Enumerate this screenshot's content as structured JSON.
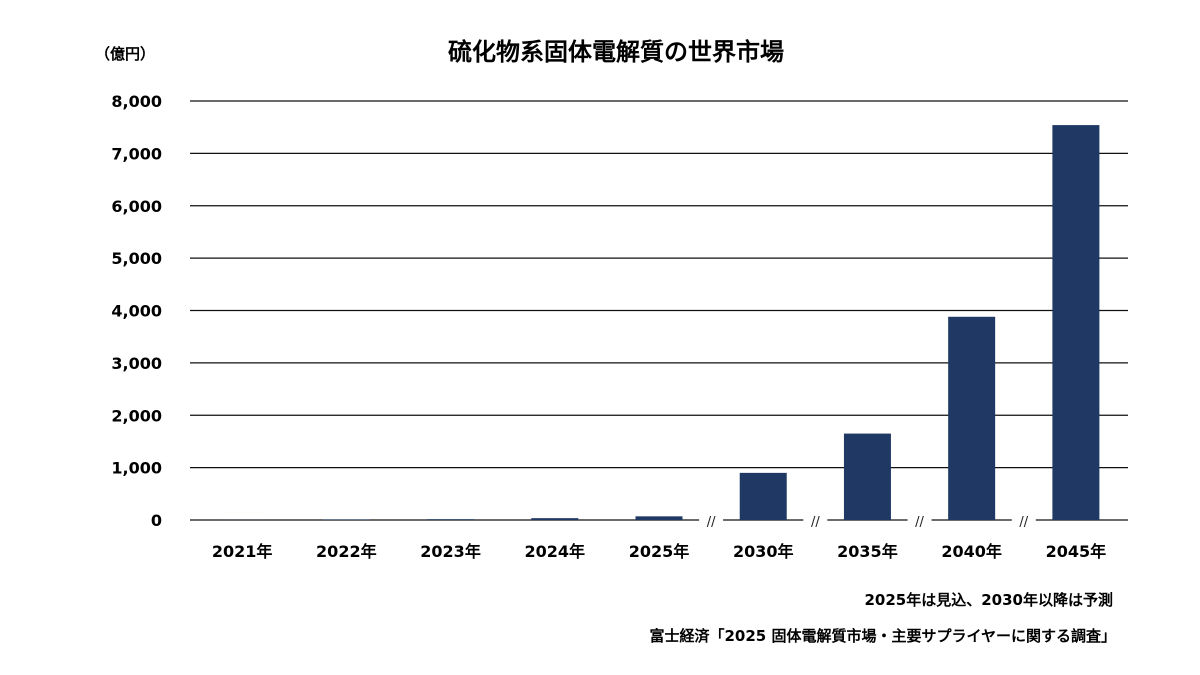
{
  "chart_data": {
    "type": "bar",
    "title": "硫化物系固体電解質の世界市場",
    "ylabel": "（億円）",
    "xlabel": "",
    "categories": [
      "2021年",
      "2022年",
      "2023年",
      "2024年",
      "2025年",
      "2030年",
      "2035年",
      "2040年",
      "2045年"
    ],
    "values": [
      2,
      10,
      15,
      35,
      70,
      900,
      1650,
      3880,
      7540
    ],
    "ylim": [
      0,
      8000
    ],
    "yticks": [
      "0",
      "1,000",
      "2,000",
      "3,000",
      "4,000",
      "5,000",
      "6,000",
      "7,000",
      "8,000"
    ],
    "grid": true,
    "axis_breaks_after": [
      "2025年",
      "2030年",
      "2035年",
      "2040年"
    ],
    "break_symbol": "//",
    "bar_color": "#1f3864"
  },
  "notes": {
    "forecast": "2025年は見込、2030年以降は予測",
    "source": "富士経済「2025 固体電解質市場・主要サプライヤーに関する調査」"
  }
}
